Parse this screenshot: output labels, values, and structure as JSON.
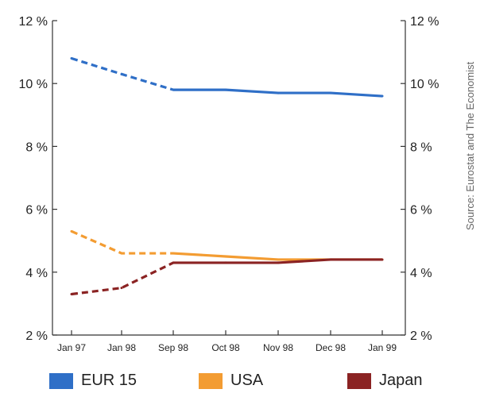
{
  "source_note": "Source: Eurostat and The Economist",
  "chart_data": {
    "type": "line",
    "categories": [
      "Jan 97",
      "Jan 98",
      "Sep 98",
      "Oct 98",
      "Nov 98",
      "Dec 98",
      "Jan 99"
    ],
    "y_ticks": [
      "2 %",
      "4 %",
      "6 %",
      "8 %",
      "10 %",
      "12 %"
    ],
    "ylim": [
      2,
      12
    ],
    "y_unit": "%",
    "dashed_until_category": "Sep 98",
    "series": [
      {
        "name": "EUR 15",
        "color": "#2f6fc7",
        "values": [
          10.8,
          10.3,
          9.8,
          9.8,
          9.7,
          9.7,
          9.6
        ]
      },
      {
        "name": "USA",
        "color": "#f39c32",
        "values": [
          5.3,
          4.6,
          4.6,
          4.5,
          4.4,
          4.4,
          4.4
        ]
      },
      {
        "name": "Japan",
        "color": "#8b2323",
        "values": [
          3.3,
          3.5,
          4.3,
          4.3,
          4.3,
          4.4,
          4.4
        ]
      }
    ]
  }
}
